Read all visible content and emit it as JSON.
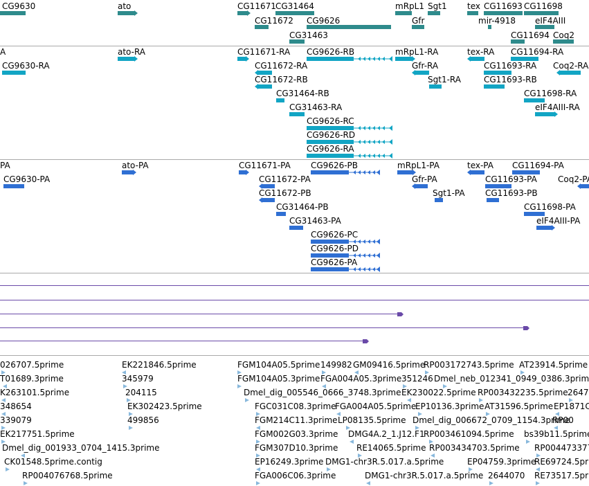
{
  "colors": {
    "gene": "#2e8b8c",
    "rna": "#12a5c4",
    "protein": "#2f6fd3",
    "alignment": "#6a4aa8",
    "est": "#88b8dc",
    "separator": "#a9a9a9"
  },
  "tracks": [
    {
      "id": "genes",
      "features": [
        {
          "label": "CG9630"
        },
        {
          "label": "ato"
        },
        {
          "label": "CG11671"
        },
        {
          "label": "CG31464"
        },
        {
          "label": "mRpL1"
        },
        {
          "label": "Sgt1"
        },
        {
          "label": "tex"
        },
        {
          "label": "CG11693"
        },
        {
          "label": "CG11698"
        },
        {
          "label": "CG11672"
        },
        {
          "label": "CG9626"
        },
        {
          "label": "Gfr"
        },
        {
          "label": "mir-4918"
        },
        {
          "label": "eIF4AIII"
        },
        {
          "label": "CG31463"
        },
        {
          "label": "CG11694"
        },
        {
          "label": "Coq2"
        }
      ]
    },
    {
      "id": "transcripts",
      "features": [
        {
          "label": "A"
        },
        {
          "label": "ato-RA"
        },
        {
          "label": "CG11671-RA"
        },
        {
          "label": "CG9626-RB"
        },
        {
          "label": "mRpL1-RA"
        },
        {
          "label": "tex-RA"
        },
        {
          "label": "CG11694-RA"
        },
        {
          "label": "CG9630-RA"
        },
        {
          "label": "CG11672-RA"
        },
        {
          "label": "Gfr-RA"
        },
        {
          "label": "CG11693-RA"
        },
        {
          "label": "Coq2-RA"
        },
        {
          "label": "CG11672-RB"
        },
        {
          "label": "Sgt1-RA"
        },
        {
          "label": "CG11693-RB"
        },
        {
          "label": "CG31464-RB"
        },
        {
          "label": "CG11698-RA"
        },
        {
          "label": "CG31463-RA"
        },
        {
          "label": "eIF4AIII-RA"
        },
        {
          "label": "CG9626-RC"
        },
        {
          "label": "CG9626-RD"
        },
        {
          "label": "CG9626-RA"
        }
      ]
    },
    {
      "id": "proteins",
      "features": [
        {
          "label": "PA"
        },
        {
          "label": "ato-PA"
        },
        {
          "label": "CG11671-PA"
        },
        {
          "label": "CG9626-PB"
        },
        {
          "label": "mRpL1-PA"
        },
        {
          "label": "tex-PA"
        },
        {
          "label": "CG11694-PA"
        },
        {
          "label": "CG9630-PA"
        },
        {
          "label": "CG11672-PA"
        },
        {
          "label": "Gfr-PA"
        },
        {
          "label": "CG11693-PA"
        },
        {
          "label": "Coq2-PA"
        },
        {
          "label": "CG11672-PB"
        },
        {
          "label": "Sgt1-PA"
        },
        {
          "label": "CG11693-PB"
        },
        {
          "label": "CG31464-PB"
        },
        {
          "label": "CG11698-PA"
        },
        {
          "label": "CG31463-PA"
        },
        {
          "label": "eIF4AIII-PA"
        },
        {
          "label": "CG9626-PC"
        },
        {
          "label": "CG9626-PD"
        },
        {
          "label": "CG9626-PA"
        }
      ]
    },
    {
      "id": "alignments",
      "features": [
        {
          "label": ""
        },
        {
          "label": ""
        },
        {
          "label": ""
        },
        {
          "label": ""
        },
        {
          "label": ""
        }
      ]
    },
    {
      "id": "ests",
      "features": [
        {
          "label": "026707.5prime"
        },
        {
          "label": "EK221846.5prime"
        },
        {
          "label": "FGM104A05.5prime"
        },
        {
          "label": "149982"
        },
        {
          "label": "GM09416.5prime"
        },
        {
          "label": "RP003172743.5prime"
        },
        {
          "label": "AT23914.5prime"
        },
        {
          "label": "T01689.3prime"
        },
        {
          "label": "345979"
        },
        {
          "label": "FGM104A05.3prime"
        },
        {
          "label": "FGA004A05.3prime"
        },
        {
          "label": "351246"
        },
        {
          "label": "Dmel_neb_012341_0949_0386.3prime"
        },
        {
          "label": "K263101.5prime"
        },
        {
          "label": "204115"
        },
        {
          "label": "Dmel_dig_005546_0666_3748.3prime"
        },
        {
          "label": "EK230022.5prime"
        },
        {
          "label": "RP003432235.5prime"
        },
        {
          "label": "2647"
        },
        {
          "label": "348654"
        },
        {
          "label": "EK302423.5prime"
        },
        {
          "label": "FGC031C08.3prime"
        },
        {
          "label": "FGA004A05.5prime"
        },
        {
          "label": "EP10136.3prime"
        },
        {
          "label": "AT31596.5prime"
        },
        {
          "label": "EP1871C"
        },
        {
          "label": "339079"
        },
        {
          "label": "499856"
        },
        {
          "label": "FGM214C11.3prime"
        },
        {
          "label": "LP08135.5prime"
        },
        {
          "label": "Dmel_dig_006672_0709_1154.3prime"
        },
        {
          "label": "RP00"
        },
        {
          "label": "EK217751.5prime"
        },
        {
          "label": "FGM002G03.3prime"
        },
        {
          "label": "DMG4A.2_1.J12.F1"
        },
        {
          "label": "RP003461094.5prime"
        },
        {
          "label": "bs39b11.5prime"
        },
        {
          "label": "Dmel_dig_001933_0704_1415.3prime"
        },
        {
          "label": "FGM307D10.3prime"
        },
        {
          "label": "RE14065.5prime"
        },
        {
          "label": "RP003434703.5prime"
        },
        {
          "label": "RP004473377"
        },
        {
          "label": "CK01548.5prime.contig"
        },
        {
          "label": "EP16249.3prime"
        },
        {
          "label": "DMG1-chr3R.5.017.a.5prime"
        },
        {
          "label": "EP04759.3prime"
        },
        {
          "label": "RE69724.5prime"
        },
        {
          "label": "RP004076768.5prime"
        },
        {
          "label": "FGA006C06.3prime"
        },
        {
          "label": "DMG1-chr3R.5.017.a.5prime"
        },
        {
          "label": "2644070"
        },
        {
          "label": "RE73517.5prime"
        }
      ]
    }
  ]
}
